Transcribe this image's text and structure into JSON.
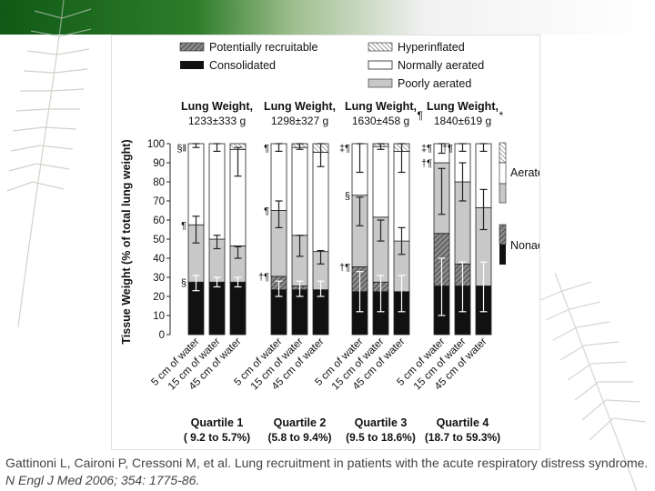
{
  "chart_data": {
    "type": "bar",
    "ylabel": "Tissue Weight (% of total lung weight)",
    "yticks": [
      0,
      10,
      20,
      30,
      40,
      50,
      60,
      70,
      80,
      90,
      100
    ],
    "ylim": [
      0,
      100
    ],
    "legend_top": {
      "potentially_recruitable": "Potentially recruitable",
      "consolidated": "Consolidated",
      "hyperinflated": "Hyperinflated",
      "normally_aerated": "Normally aerated",
      "poorly_aerated": "Poorly aerated"
    },
    "legend_right": {
      "aerated": "Aerated",
      "nonaerated": "Nonaerated"
    },
    "groups": [
      {
        "weight_label": "Lung Weight,",
        "weight_value": "1233±333 g",
        "quartile": "Quartile 1",
        "range": "( 9.2 to 5.7%)",
        "weight_mark": "",
        "bars": [
          {
            "label": "5 cm of water",
            "consolidated": 27.5,
            "recruitable": 0,
            "poorly": 30,
            "normal": 42.5,
            "hyper": 0,
            "err_cons": [
              23,
              31
            ],
            "err_poor": [
              48,
              62
            ],
            "err_normal": [
              98,
              100
            ],
            "mark_top": "§‖",
            "mark_mid": "¶",
            "mark_low": "§"
          },
          {
            "label": "15 cm of water",
            "consolidated": 27.5,
            "recruitable": 0,
            "poorly": 22.5,
            "normal": 50,
            "hyper": 0,
            "err_cons": [
              25,
              30
            ],
            "err_poor": [
              45,
              52
            ],
            "err_normal": [
              96,
              100
            ],
            "mark_top": "",
            "mark_mid": "",
            "mark_low": ""
          },
          {
            "label": "45 cm of water",
            "consolidated": 27.5,
            "recruitable": 0,
            "poorly": 19,
            "normal": 50.5,
            "hyper": 3,
            "err_cons": [
              25,
              30
            ],
            "err_poor": [
              40,
              46
            ],
            "err_normal": [
              83,
              98
            ],
            "mark_top": "",
            "mark_mid": "",
            "mark_low": ""
          }
        ]
      },
      {
        "weight_label": "Lung Weight,",
        "weight_value": "1298±327 g",
        "quartile": "Quartile 2",
        "range": "(5.8 to 9.4%)",
        "weight_mark": "",
        "bars": [
          {
            "label": "5 cm of water",
            "consolidated": 23.5,
            "recruitable": 7,
            "poorly": 34.5,
            "normal": 35,
            "hyper": 0,
            "err_cons": [
              20,
              28
            ],
            "err_poor": [
              56,
              70
            ],
            "err_normal": [
              96,
              100
            ],
            "mark_top": "¶",
            "mark_mid": "¶",
            "mark_low": "†¶"
          },
          {
            "label": "15 cm of water",
            "consolidated": 23.5,
            "recruitable": 2,
            "poorly": 26.5,
            "normal": 46,
            "hyper": 2,
            "err_cons": [
              20,
              28
            ],
            "err_poor": [
              41,
              52
            ],
            "err_normal": [
              97,
              100
            ],
            "mark_top": "",
            "mark_mid": "",
            "mark_low": ""
          },
          {
            "label": "45 cm of water",
            "consolidated": 23.5,
            "recruitable": 0,
            "poorly": 20,
            "normal": 52,
            "hyper": 4.5,
            "err_cons": [
              20,
              28
            ],
            "err_poor": [
              37,
              44
            ],
            "err_normal": [
              88,
              100
            ],
            "mark_top": "",
            "mark_mid": "",
            "mark_low": ""
          }
        ]
      },
      {
        "weight_label": "Lung Weight,",
        "weight_value": "1630±458 g",
        "quartile": "Quartile 3",
        "range": "(9.5 to 18.6%)",
        "weight_mark": "¶",
        "bars": [
          {
            "label": "5 cm of water",
            "consolidated": 22.5,
            "recruitable": 13,
            "poorly": 37.5,
            "normal": 27,
            "hyper": 0,
            "err_cons": [
              12,
              33
            ],
            "err_poor": [
              57,
              72
            ],
            "err_normal": [
              85,
              100
            ],
            "mark_top": "‡¶",
            "mark_mid": "§",
            "mark_low": "†¶"
          },
          {
            "label": "15 cm of water",
            "consolidated": 22.5,
            "recruitable": 5,
            "poorly": 34,
            "normal": 37,
            "hyper": 1.5,
            "err_cons": [
              12,
              31
            ],
            "err_poor": [
              49,
              60
            ],
            "err_normal": [
              97,
              100
            ],
            "mark_top": "",
            "mark_mid": "",
            "mark_low": ""
          },
          {
            "label": "45 cm of water",
            "consolidated": 22.5,
            "recruitable": 0,
            "poorly": 26.5,
            "normal": 47,
            "hyper": 4,
            "err_cons": [
              12,
              31
            ],
            "err_poor": [
              42,
              56
            ],
            "err_normal": [
              85,
              100
            ],
            "mark_top": "",
            "mark_mid": "",
            "mark_low": ""
          }
        ]
      },
      {
        "weight_label": "Lung Weight,",
        "weight_value": "1840±619 g",
        "quartile": "Quartile 4",
        "range": "(18.7 to 59.3%)",
        "weight_mark": "*",
        "bars": [
          {
            "label": "5 cm of water",
            "consolidated": 25.5,
            "recruitable": 27.5,
            "poorly": 37,
            "normal": 10,
            "hyper": 0,
            "err_cons": [
              10,
              40
            ],
            "err_poor": [
              63,
              87
            ],
            "err_normal": [
              95,
              100
            ],
            "mark_top": "‡¶",
            "mark_mid": "†¶",
            "mark_low": ""
          },
          {
            "label": "15 cm of water",
            "consolidated": 25.5,
            "recruitable": 11.5,
            "poorly": 43,
            "normal": 20,
            "hyper": 0,
            "err_cons": [
              12,
              38
            ],
            "err_poor": [
              70,
              90
            ],
            "err_normal": [
              96,
              100
            ],
            "mark_top": "†¶",
            "mark_mid": "",
            "mark_low": ""
          },
          {
            "label": "45 cm of water",
            "consolidated": 25.5,
            "recruitable": 0,
            "poorly": 41,
            "normal": 33.5,
            "hyper": 0,
            "err_cons": [
              12,
              38
            ],
            "err_poor": [
              55,
              76
            ],
            "err_normal": [
              96,
              100
            ],
            "mark_top": "",
            "mark_mid": "",
            "mark_low": ""
          }
        ]
      }
    ]
  },
  "citation": {
    "authors_title": "Gattinoni L, Caironi P, Cressoni M, et al. Lung recruitment in patients with the acute respiratory distress syndrome.",
    "journal": "N Engl J Med 2006; 354: 1775-86."
  }
}
